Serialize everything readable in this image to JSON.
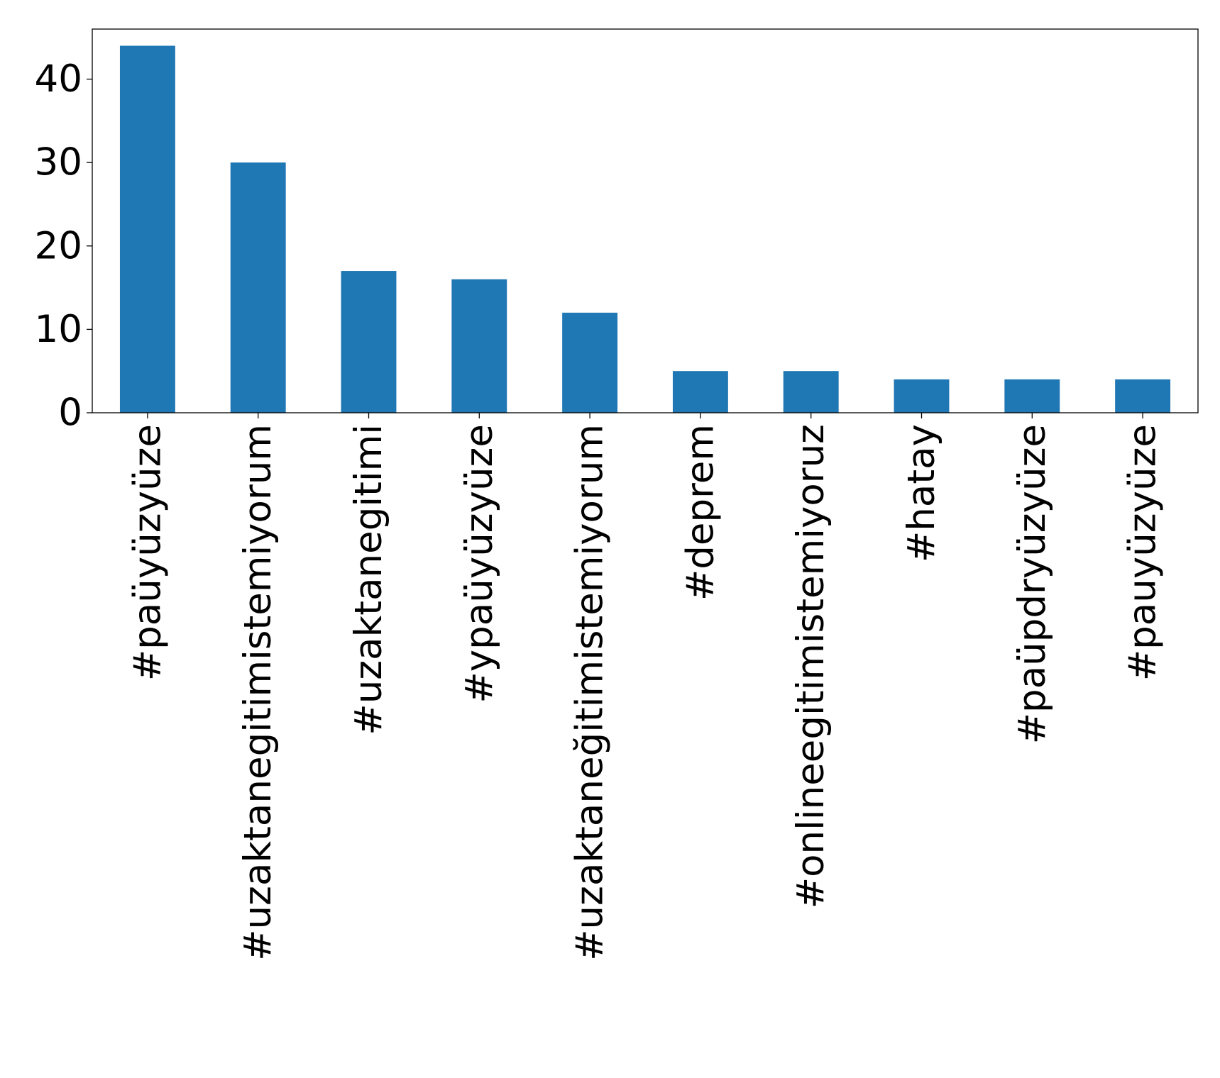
{
  "chart_data": {
    "type": "bar",
    "categories": [
      "#paüyüzyüze",
      "#uzaktanegitimistemiyorum",
      "#uzaktanegitimi",
      "#ypaüyüzyüze",
      "#uzaktaneğitimistemiyorum",
      "#deprem",
      "#onlineegitimistemiyoruz",
      "#hatay",
      "#paüpdryüzyüze",
      "#pauyüzyüze"
    ],
    "values": [
      44,
      30,
      17,
      16,
      12,
      5,
      5,
      4,
      4,
      4
    ],
    "ylim": [
      0,
      46
    ],
    "yticks": [
      0,
      10,
      20,
      30,
      40
    ],
    "bar_color": "#1f77b4",
    "grid": false,
    "legend": false
  }
}
